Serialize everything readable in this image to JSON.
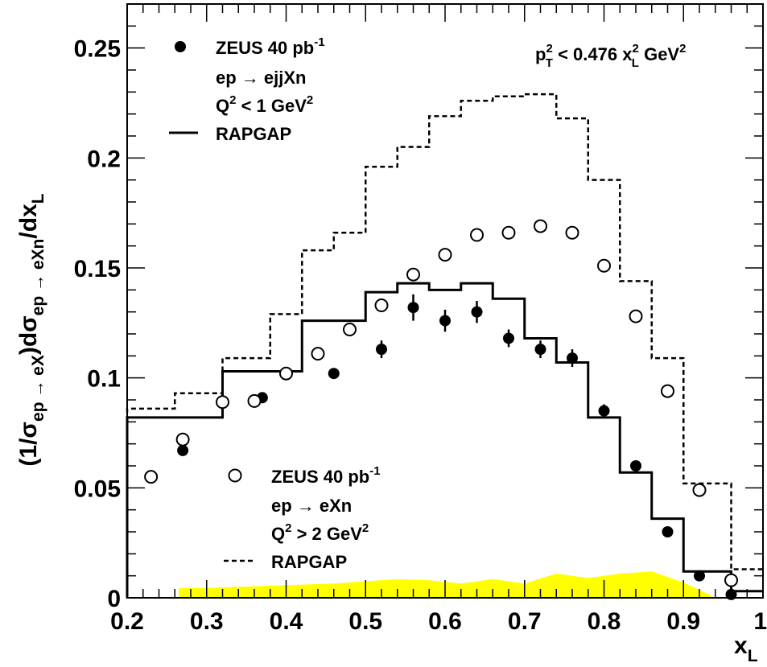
{
  "chart_data": {
    "type": "scatter",
    "xlabel": "x",
    "xlabel_sub": "L",
    "ylabel_parts": {
      "p1": "(1/σ",
      "s1": "ep → eX",
      "p2": ")dσ",
      "s2": "ep → eXn",
      "p3": "/dx",
      "s3": "L"
    },
    "xlim": [
      0.2,
      1.0
    ],
    "ylim": [
      0,
      0.27
    ],
    "x_ticks": [
      0.2,
      0.3,
      0.4,
      0.5,
      0.6,
      0.7,
      0.8,
      0.9,
      1.0
    ],
    "x_tick_labels": [
      "0.2",
      "0.3",
      "0.4",
      "0.5",
      "0.6",
      "0.7",
      "0.8",
      "0.9",
      "1"
    ],
    "y_ticks": [
      0,
      0.05,
      0.1,
      0.15,
      0.2,
      0.25
    ],
    "y_tick_labels": [
      "0",
      "0.05",
      "0.1",
      "0.15",
      "0.2",
      "0.25"
    ],
    "cut_annotation": {
      "p": "p",
      "p_sup": "2",
      "p_sub": "T",
      "mid": " < 0.476 x",
      "x_sup": "2",
      "x_sub": "L",
      "unit": " GeV",
      "unit_sup": "2"
    },
    "legend_top": {
      "l1": "ZEUS 40 pb",
      "l1_sup": "-1",
      "l2": "ep → ejjXn",
      "l3": "Q",
      "l3_sup": "2",
      "l3_rest": " < 1 GeV",
      "l3_sup2": "2",
      "l4": "RAPGAP"
    },
    "legend_bottom": {
      "l1": "ZEUS 40 pb",
      "l1_sup": "-1",
      "l2": "ep → eXn",
      "l3": "Q",
      "l3_sup": "2",
      "l3_rest": " > 2 GeV",
      "l3_sup2": "2",
      "l4": "RAPGAP"
    },
    "series": [
      {
        "marker": "filled-circle",
        "x": [
          0.27,
          0.37,
          0.46,
          0.52,
          0.56,
          0.6,
          0.64,
          0.68,
          0.72,
          0.76,
          0.8,
          0.84,
          0.88,
          0.92,
          0.96
        ],
        "y": [
          0.067,
          0.091,
          0.102,
          0.113,
          0.132,
          0.126,
          0.13,
          0.118,
          0.113,
          0.109,
          0.085,
          0.06,
          0.03,
          0.01,
          0.0015
        ],
        "yerr": [
          0.002,
          0.002,
          0.002,
          0.004,
          0.006,
          0.005,
          0.005,
          0.004,
          0.004,
          0.004,
          0.003,
          0.002,
          0.002,
          0.001,
          0.001
        ]
      },
      {
        "marker": "open-circle",
        "x": [
          0.23,
          0.27,
          0.32,
          0.36,
          0.4,
          0.44,
          0.48,
          0.52,
          0.56,
          0.6,
          0.64,
          0.68,
          0.72,
          0.76,
          0.8,
          0.84,
          0.88,
          0.92,
          0.96
        ],
        "y": [
          0.055,
          0.072,
          0.089,
          0.0895,
          0.102,
          0.111,
          0.122,
          0.133,
          0.147,
          0.156,
          0.165,
          0.166,
          0.169,
          0.166,
          0.151,
          0.128,
          0.094,
          0.049,
          0.008
        ]
      },
      {
        "style": "solid-histogram",
        "edges": [
          0.2,
          0.32,
          0.42,
          0.5,
          0.54,
          0.58,
          0.62,
          0.66,
          0.7,
          0.74,
          0.78,
          0.82,
          0.86,
          0.9,
          0.96,
          1.0
        ],
        "values": [
          0.082,
          0.103,
          0.126,
          0.139,
          0.143,
          0.14,
          0.143,
          0.136,
          0.118,
          0.107,
          0.082,
          0.057,
          0.036,
          0.012,
          0.003
        ]
      },
      {
        "style": "dashed-histogram",
        "edges": [
          0.2,
          0.26,
          0.32,
          0.38,
          0.42,
          0.46,
          0.5,
          0.54,
          0.58,
          0.62,
          0.66,
          0.7,
          0.74,
          0.78,
          0.82,
          0.86,
          0.9,
          0.96,
          1.0
        ],
        "values": [
          0.086,
          0.093,
          0.109,
          0.129,
          0.158,
          0.166,
          0.196,
          0.205,
          0.219,
          0.226,
          0.228,
          0.229,
          0.218,
          0.19,
          0.144,
          0.109,
          0.052,
          0.013,
          0.013
        ]
      }
    ],
    "systematic_band": {
      "color": "#ffff00",
      "x": [
        0.265,
        0.3,
        0.34,
        0.38,
        0.42,
        0.46,
        0.5,
        0.54,
        0.58,
        0.62,
        0.66,
        0.7,
        0.74,
        0.78,
        0.82,
        0.86,
        0.9,
        0.935
      ],
      "y": [
        0.0045,
        0.0045,
        0.005,
        0.0055,
        0.006,
        0.0065,
        0.0075,
        0.0085,
        0.008,
        0.0065,
        0.0085,
        0.0065,
        0.011,
        0.009,
        0.011,
        0.012,
        0.007,
        0.001
      ]
    }
  }
}
